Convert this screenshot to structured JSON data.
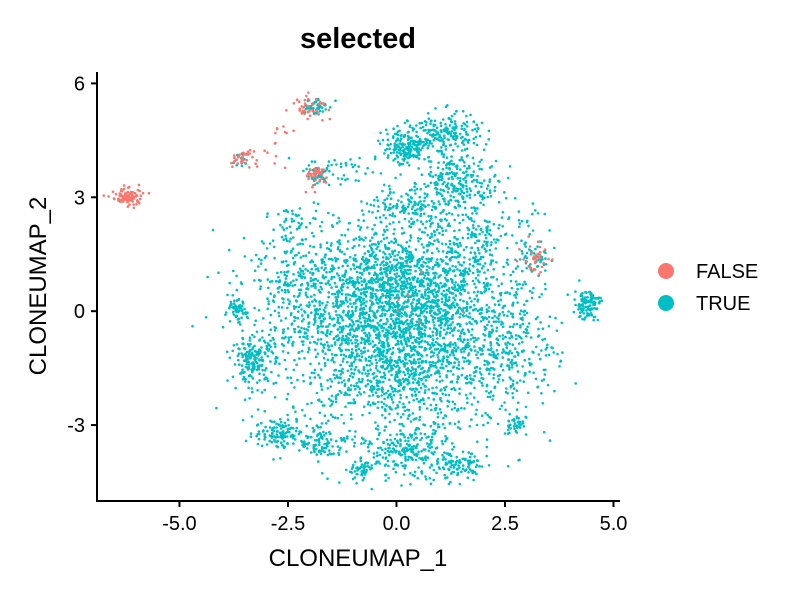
{
  "chart_data": {
    "type": "scatter",
    "title": "selected",
    "xlabel": "CLONEUMAP_1",
    "ylabel": "CLONEUMAP_2",
    "xlim": [
      -6.9,
      5.15
    ],
    "ylim": [
      -5.0,
      6.3
    ],
    "x_ticks": [
      -5.0,
      -2.5,
      0.0,
      2.5,
      5.0
    ],
    "x_tick_labels": [
      "-5.0",
      "-2.5",
      "0.0",
      "2.5",
      "5.0"
    ],
    "y_ticks": [
      -3,
      0,
      3,
      6
    ],
    "y_tick_labels": [
      "-3",
      "0",
      "3",
      "6"
    ],
    "grid": false,
    "legend_position": "right",
    "series": [
      {
        "name": "FALSE",
        "color": "#F8766D",
        "clusters": [
          {
            "cx": -6.2,
            "cy": 3.0,
            "sx": 0.18,
            "sy": 0.12,
            "n": 90
          },
          {
            "cx": -3.6,
            "cy": 4.0,
            "sx": 0.12,
            "sy": 0.12,
            "n": 28
          },
          {
            "cx": -3.2,
            "cy": 4.05,
            "sx": 0.35,
            "sy": 0.15,
            "n": 14
          },
          {
            "cx": -2.0,
            "cy": 5.4,
            "sx": 0.2,
            "sy": 0.15,
            "n": 45
          },
          {
            "cx": -1.85,
            "cy": 3.55,
            "sx": 0.18,
            "sy": 0.15,
            "n": 40
          },
          {
            "cx": 3.2,
            "cy": 1.4,
            "sx": 0.15,
            "sy": 0.22,
            "n": 38
          },
          {
            "cx": -2.7,
            "cy": 4.7,
            "sx": 0.12,
            "sy": 0.15,
            "n": 8
          },
          {
            "cx": 0.2,
            "cy": 0.3,
            "sx": 0.6,
            "sy": 0.6,
            "n": 6
          }
        ]
      },
      {
        "name": "TRUE",
        "color": "#00BFC4",
        "clusters": [
          {
            "cx": 0.0,
            "cy": -0.6,
            "sx": 1.25,
            "sy": 1.3,
            "n": 2600
          },
          {
            "cx": 0.3,
            "cy": 0.9,
            "sx": 1.1,
            "sy": 0.7,
            "n": 600
          },
          {
            "cx": 0.2,
            "cy": 4.3,
            "sx": 0.25,
            "sy": 0.25,
            "n": 180
          },
          {
            "cx": 1.1,
            "cy": 4.6,
            "sx": 0.4,
            "sy": 0.3,
            "n": 220
          },
          {
            "cx": 1.5,
            "cy": 3.4,
            "sx": 0.45,
            "sy": 0.3,
            "n": 200
          },
          {
            "cx": 0.4,
            "cy": 2.8,
            "sx": 0.5,
            "sy": 0.3,
            "n": 150
          },
          {
            "cx": 4.4,
            "cy": 0.2,
            "sx": 0.15,
            "sy": 0.2,
            "n": 110
          },
          {
            "cx": 3.2,
            "cy": 1.4,
            "sx": 0.18,
            "sy": 0.2,
            "n": 40
          },
          {
            "cx": -3.7,
            "cy": 0.0,
            "sx": 0.13,
            "sy": 0.15,
            "n": 60
          },
          {
            "cx": -3.3,
            "cy": -1.3,
            "sx": 0.25,
            "sy": 0.3,
            "n": 180
          },
          {
            "cx": -2.7,
            "cy": -3.2,
            "sx": 0.3,
            "sy": 0.2,
            "n": 120
          },
          {
            "cx": -1.7,
            "cy": -3.5,
            "sx": 0.25,
            "sy": 0.2,
            "n": 80
          },
          {
            "cx": -0.8,
            "cy": -4.2,
            "sx": 0.15,
            "sy": 0.12,
            "n": 50
          },
          {
            "cx": 0.3,
            "cy": -3.7,
            "sx": 0.5,
            "sy": 0.35,
            "n": 220
          },
          {
            "cx": 1.5,
            "cy": -4.1,
            "sx": 0.3,
            "sy": 0.2,
            "n": 100
          },
          {
            "cx": 2.7,
            "cy": -3.0,
            "sx": 0.12,
            "sy": 0.12,
            "n": 40
          },
          {
            "cx": 2.7,
            "cy": -0.8,
            "sx": 0.5,
            "sy": 0.9,
            "n": 220
          },
          {
            "cx": -2.2,
            "cy": 0.6,
            "sx": 0.7,
            "sy": 0.8,
            "n": 250
          },
          {
            "cx": -2.6,
            "cy": 0.7,
            "sx": 0.1,
            "sy": 0.1,
            "n": 20
          },
          {
            "cx": -1.9,
            "cy": 5.4,
            "sx": 0.15,
            "sy": 0.12,
            "n": 50
          },
          {
            "cx": -1.85,
            "cy": 3.6,
            "sx": 0.15,
            "sy": 0.15,
            "n": 50
          },
          {
            "cx": -3.6,
            "cy": 4.0,
            "sx": 0.1,
            "sy": 0.1,
            "n": 15
          },
          {
            "cx": -1.2,
            "cy": 3.7,
            "sx": 0.25,
            "sy": 0.25,
            "n": 30
          },
          {
            "cx": -2.2,
            "cy": 2.3,
            "sx": 0.3,
            "sy": 0.3,
            "n": 40
          },
          {
            "cx": 2.0,
            "cy": 2.0,
            "sx": 0.6,
            "sy": 0.5,
            "n": 150
          }
        ]
      }
    ]
  }
}
